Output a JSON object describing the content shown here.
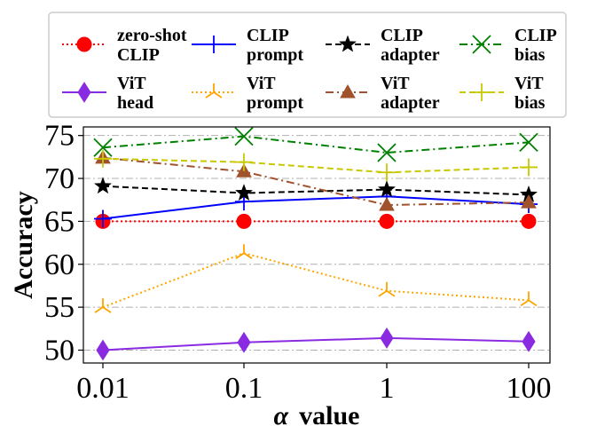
{
  "chart_data": {
    "type": "line",
    "title": "",
    "xlabel": "value",
    "xlabel_symbol": "α",
    "ylabel": "Accuracy",
    "x_scale": "log",
    "categories": [
      "0.01",
      "0.1",
      "1",
      "100"
    ],
    "ylim": [
      48.5,
      76
    ],
    "yticks": [
      50,
      55,
      60,
      65,
      70,
      75
    ],
    "grid": "horizontal",
    "legend_position": "top",
    "series": [
      {
        "name": "zero-shot CLIP",
        "label_lines": [
          "zero-shot",
          "CLIP"
        ],
        "color": "#ff0000",
        "linestyle": "dotted",
        "marker": "circle",
        "values": [
          65.0,
          65.0,
          65.0,
          65.0
        ]
      },
      {
        "name": "ViT head",
        "label_lines": [
          "ViT",
          "head"
        ],
        "color": "#8a2be2",
        "linestyle": "solid",
        "marker": "thin_diamond",
        "values": [
          50.0,
          50.9,
          51.4,
          51.0
        ]
      },
      {
        "name": "CLIP prompt",
        "label_lines": [
          "CLIP",
          "prompt"
        ],
        "color": "#0000ff",
        "linestyle": "solid",
        "marker": "plus",
        "values": [
          65.3,
          67.3,
          67.9,
          67.0
        ]
      },
      {
        "name": "ViT prompt",
        "label_lines": [
          "ViT",
          "prompt"
        ],
        "color": "#ffa500",
        "linestyle": "dotted",
        "marker": "tri_down",
        "values": [
          55.0,
          61.3,
          56.9,
          55.8
        ]
      },
      {
        "name": "CLIP adapter",
        "label_lines": [
          "CLIP",
          "adapter"
        ],
        "color": "#000000",
        "linestyle": "dashed",
        "marker": "star",
        "values": [
          69.1,
          68.3,
          68.7,
          68.1
        ]
      },
      {
        "name": "ViT adapter",
        "label_lines": [
          "ViT",
          "adapter"
        ],
        "color": "#a0522d",
        "linestyle": "dashdot",
        "marker": "triangle",
        "values": [
          72.4,
          70.8,
          66.9,
          67.2
        ]
      },
      {
        "name": "CLIP bias",
        "label_lines": [
          "CLIP",
          "bias"
        ],
        "color": "#008000",
        "linestyle": "dashdot",
        "marker": "x",
        "values": [
          73.6,
          74.9,
          73.0,
          74.2
        ]
      },
      {
        "name": "ViT bias",
        "label_lines": [
          "ViT",
          "bias"
        ],
        "color": "#c8c800",
        "linestyle": "dashed",
        "marker": "plus",
        "values": [
          72.3,
          71.9,
          70.7,
          71.3
        ]
      }
    ]
  }
}
